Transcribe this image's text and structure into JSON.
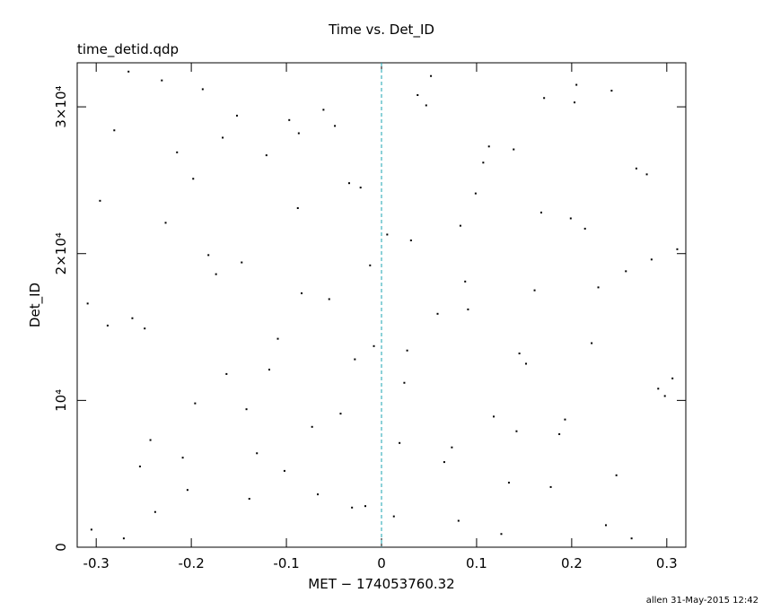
{
  "chart_data": {
    "type": "scatter",
    "title": "Time vs. Det_ID",
    "subtitle": "time_detid.qdp",
    "x_label": "MET − 174053760.32",
    "y_label": "Det_ID",
    "footer": "allen 31-May-2015 12:42",
    "color": "#000000",
    "vline": {
      "x": 0,
      "color": "#1aa3b0"
    },
    "xlim": [
      -0.32,
      0.32
    ],
    "xticks": [
      -0.3,
      -0.2,
      -0.1,
      0,
      0.1,
      0.2,
      0.3
    ],
    "ylim": [
      0,
      33000
    ],
    "yticks": [
      0,
      {
        "value": 10000,
        "label": "10⁴"
      },
      {
        "value": 20000,
        "label": "2×10⁴"
      },
      {
        "value": 30000,
        "label": "3×10⁴"
      }
    ],
    "x": [
      -0.305,
      -0.281,
      -0.262,
      -0.243,
      -0.227,
      -0.204,
      -0.188,
      -0.163,
      -0.147,
      -0.121,
      -0.102,
      -0.084,
      -0.061,
      -0.043,
      -0.022,
      -0.008,
      0.013,
      0.031,
      0.052,
      0.074,
      0.091,
      0.113,
      0.134,
      0.152,
      0.171,
      0.193,
      0.214,
      0.236,
      0.257,
      0.279,
      0.298,
      -0.296,
      -0.271,
      -0.249,
      -0.231,
      -0.209,
      -0.182,
      -0.167,
      -0.139,
      -0.118,
      -0.097,
      -0.073,
      -0.055,
      -0.034,
      -0.017,
      0.006,
      0.024,
      0.047,
      0.066,
      0.088,
      0.107,
      0.126,
      0.145,
      0.168,
      0.187,
      0.205,
      0.228,
      0.247,
      0.268,
      0.291,
      0.311,
      -0.288,
      -0.266,
      -0.238,
      -0.215,
      -0.196,
      -0.174,
      -0.152,
      -0.131,
      -0.109,
      -0.088,
      -0.067,
      -0.049,
      -0.028,
      -0.012,
      0.019,
      0.038,
      0.059,
      0.081,
      0.099,
      0.118,
      0.139,
      0.161,
      0.178,
      0.199,
      0.221,
      0.242,
      0.263,
      0.284,
      0.306,
      -0.309,
      -0.254,
      -0.198,
      -0.142,
      -0.087,
      -0.031,
      0.027,
      0.083,
      0.142,
      0.203
    ],
    "values": [
      1200,
      28400,
      15600,
      7300,
      22100,
      3900,
      31200,
      11800,
      19400,
      26700,
      5200,
      17300,
      29800,
      9100,
      24500,
      13700,
      2100,
      20900,
      32100,
      6800,
      16200,
      27300,
      4400,
      12500,
      30600,
      8700,
      21700,
      1500,
      18800,
      25400,
      10300,
      23600,
      600,
      14900,
      31800,
      6100,
      19900,
      27900,
      3300,
      12100,
      29100,
      8200,
      16900,
      24800,
      2800,
      21300,
      11200,
      30100,
      5800,
      18100,
      26200,
      900,
      13200,
      22800,
      7700,
      31500,
      17700,
      4900,
      25800,
      10800,
      20300,
      15100,
      32400,
      2400,
      26900,
      9800,
      18600,
      29400,
      6400,
      14200,
      23100,
      3600,
      28700,
      12800,
      19200,
      7100,
      30800,
      15900,
      1800,
      24100,
      8900,
      27100,
      17500,
      4100,
      22400,
      13900,
      31100,
      600,
      19600,
      11500,
      16600,
      5500,
      25100,
      9400,
      28200,
      2700,
      13400,
      21900,
      7900,
      30300
    ]
  }
}
